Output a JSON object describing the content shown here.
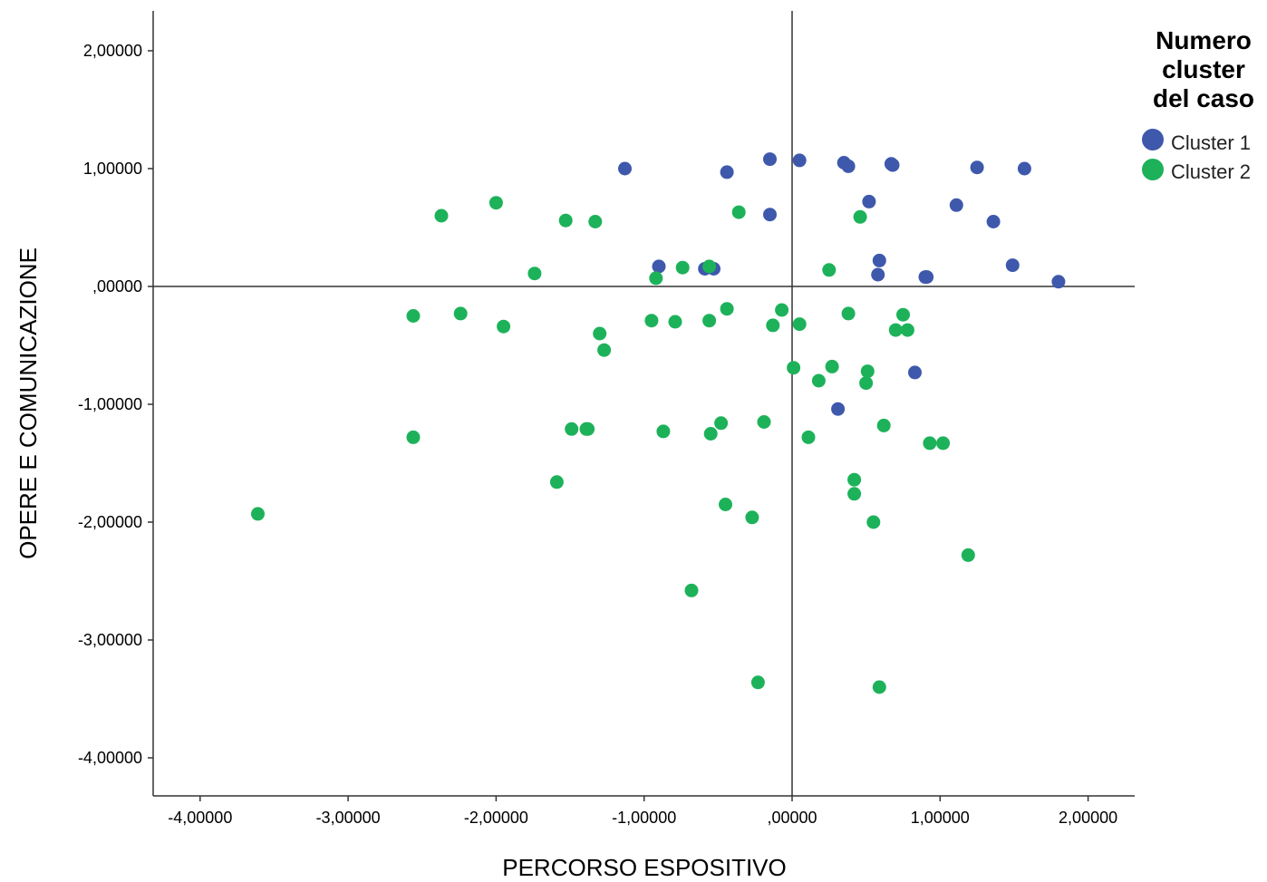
{
  "chart_data": {
    "type": "scatter",
    "xlabel": "PERCORSO ESPOSITIVO",
    "ylabel": "OPERE E COMUNICAZIONE",
    "xlim": [
      -4.3,
      2.3
    ],
    "ylim": [
      -4.4,
      2.35
    ],
    "x_ticks": [
      -4,
      -3,
      -2,
      -1,
      0,
      1,
      2
    ],
    "x_tick_labels": [
      "-4,00000",
      "-3,00000",
      "-2,00000",
      "-1,00000",
      ",00000",
      "1,00000",
      "2,00000"
    ],
    "y_ticks": [
      2,
      1,
      0,
      -1,
      -2,
      -3,
      -4
    ],
    "y_tick_labels": [
      "2,00000",
      "1,00000",
      ",00000",
      "-1,00000",
      "-2,00000",
      "-3,00000",
      "-4,00000"
    ],
    "reference_lines": {
      "x": 0,
      "y": 0
    },
    "grid": false,
    "legend": {
      "title": [
        "Numero",
        "cluster",
        "del caso"
      ],
      "placement": "top-right"
    },
    "series": [
      {
        "name": "Cluster 1",
        "color": "#3E58AC",
        "points": [
          [
            -1.13,
            1.0
          ],
          [
            -0.44,
            0.97
          ],
          [
            -0.15,
            1.08
          ],
          [
            0.05,
            1.07
          ],
          [
            0.35,
            1.05
          ],
          [
            0.38,
            1.02
          ],
          [
            0.67,
            1.04
          ],
          [
            0.68,
            1.03
          ],
          [
            1.25,
            1.01
          ],
          [
            1.57,
            1.0
          ],
          [
            0.52,
            0.72
          ],
          [
            1.11,
            0.69
          ],
          [
            1.36,
            0.55
          ],
          [
            -0.15,
            0.61
          ],
          [
            0.59,
            0.22
          ],
          [
            0.58,
            0.1
          ],
          [
            0.9,
            0.08
          ],
          [
            0.91,
            0.08
          ],
          [
            1.49,
            0.18
          ],
          [
            1.8,
            0.04
          ],
          [
            -0.9,
            0.17
          ],
          [
            -0.59,
            0.15
          ],
          [
            -0.53,
            0.15
          ],
          [
            0.83,
            -0.73
          ],
          [
            0.31,
            -1.04
          ]
        ]
      },
      {
        "name": "Cluster 2",
        "color": "#1DB25A",
        "points": [
          [
            -2.37,
            0.6
          ],
          [
            -2.0,
            0.71
          ],
          [
            -1.53,
            0.56
          ],
          [
            -1.33,
            0.55
          ],
          [
            -0.36,
            0.63
          ],
          [
            0.46,
            0.59
          ],
          [
            -1.74,
            0.11
          ],
          [
            -0.92,
            0.07
          ],
          [
            -0.74,
            0.16
          ],
          [
            -0.56,
            0.17
          ],
          [
            0.25,
            0.14
          ],
          [
            -2.56,
            -0.25
          ],
          [
            -2.24,
            -0.23
          ],
          [
            -1.95,
            -0.34
          ],
          [
            -1.3,
            -0.4
          ],
          [
            -1.27,
            -0.54
          ],
          [
            -0.95,
            -0.29
          ],
          [
            -0.79,
            -0.3
          ],
          [
            -0.56,
            -0.29
          ],
          [
            -0.44,
            -0.19
          ],
          [
            -0.07,
            -0.2
          ],
          [
            -0.13,
            -0.33
          ],
          [
            0.05,
            -0.32
          ],
          [
            0.38,
            -0.23
          ],
          [
            0.75,
            -0.24
          ],
          [
            0.7,
            -0.37
          ],
          [
            0.78,
            -0.37
          ],
          [
            0.01,
            -0.69
          ],
          [
            0.27,
            -0.68
          ],
          [
            0.18,
            -0.8
          ],
          [
            0.51,
            -0.72
          ],
          [
            0.5,
            -0.82
          ],
          [
            -2.56,
            -1.28
          ],
          [
            -1.49,
            -1.21
          ],
          [
            -1.39,
            -1.21
          ],
          [
            -1.38,
            -1.21
          ],
          [
            -0.87,
            -1.23
          ],
          [
            -0.55,
            -1.25
          ],
          [
            -0.48,
            -1.16
          ],
          [
            -0.19,
            -1.15
          ],
          [
            0.11,
            -1.28
          ],
          [
            0.62,
            -1.18
          ],
          [
            0.93,
            -1.33
          ],
          [
            1.02,
            -1.33
          ],
          [
            -1.59,
            -1.66
          ],
          [
            0.42,
            -1.64
          ],
          [
            0.42,
            -1.76
          ],
          [
            0.55,
            -2.0
          ],
          [
            -0.45,
            -1.85
          ],
          [
            -0.27,
            -1.96
          ],
          [
            1.19,
            -2.28
          ],
          [
            -3.61,
            -1.93
          ],
          [
            -0.68,
            -2.58
          ],
          [
            -0.23,
            -3.36
          ],
          [
            0.59,
            -3.4
          ]
        ]
      }
    ]
  }
}
